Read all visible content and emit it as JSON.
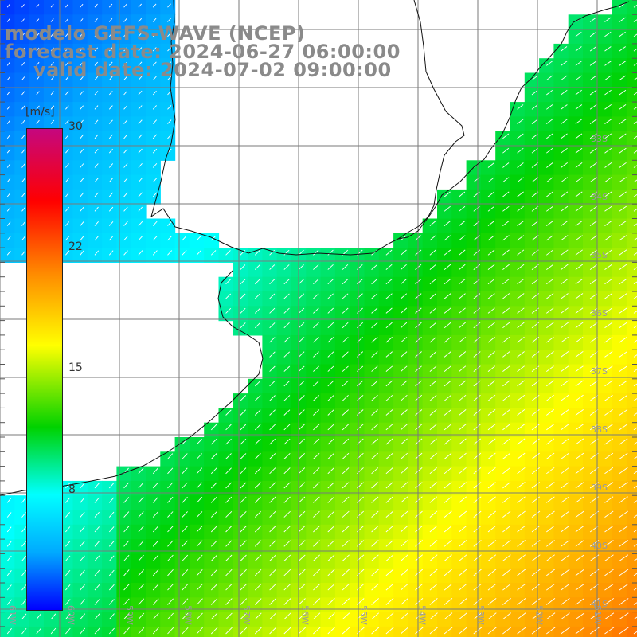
{
  "title": {
    "line1": "modelo GEFS-WAVE (NCEP)",
    "line2": "forecast date: 2024-06-27 06:00:00",
    "line3": "valid date: 2024-07-02 09:00:00"
  },
  "colorbar": {
    "unit": "[m/s]",
    "ticks": [
      "30",
      "22",
      "15",
      "8"
    ],
    "colors": [
      "#c5077f",
      "#ff0000",
      "#ff8a00",
      "#ffff00",
      "#00d200",
      "#00ffff",
      "#00aaff",
      "#0000ff"
    ]
  },
  "lat_labels": [
    "33S",
    "34S",
    "35S",
    "36S",
    "37S",
    "38S",
    "39S",
    "40S",
    "41S"
  ],
  "lon_labels": [
    "61W",
    "60W",
    "59W",
    "58W",
    "57W",
    "56W",
    "55W",
    "54W",
    "53W",
    "52W",
    "51W"
  ],
  "colors": {
    "land": "#ffffff",
    "grid": "#7a7a7a",
    "coast": "#111111",
    "label": "#9a9a9a"
  }
}
